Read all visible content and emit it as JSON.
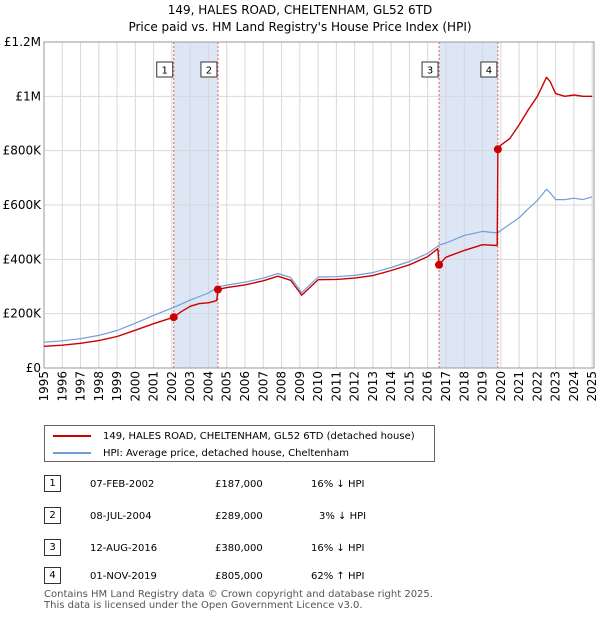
{
  "chart_data": {
    "type": "line",
    "title": "149, HALES ROAD, CHELTENHAM, GL52 6TD",
    "subtitle": "Price paid vs. HM Land Registry's House Price Index (HPI)",
    "xlabel": "",
    "ylabel": "",
    "xlim": [
      1995,
      2025.1
    ],
    "ylim": [
      0,
      1200000
    ],
    "x_ticks": [
      "1995",
      "1996",
      "1997",
      "1998",
      "1999",
      "2000",
      "2001",
      "2002",
      "2003",
      "2004",
      "2005",
      "2006",
      "2007",
      "2008",
      "2009",
      "2010",
      "2011",
      "2012",
      "2013",
      "2014",
      "2015",
      "2016",
      "2017",
      "2018",
      "2019",
      "2020",
      "2021",
      "2022",
      "2023",
      "2024",
      "2025"
    ],
    "y_ticks": [
      {
        "value": 0,
        "label": "£0"
      },
      {
        "value": 200000,
        "label": "£200K"
      },
      {
        "value": 400000,
        "label": "£400K"
      },
      {
        "value": 600000,
        "label": "£600K"
      },
      {
        "value": 800000,
        "label": "£800K"
      },
      {
        "value": 1000000,
        "label": "£1M"
      },
      {
        "value": 1200000,
        "label": "£1.2M"
      }
    ],
    "grid": true,
    "colors": {
      "property": "#cc0000",
      "hpi": "#6f9fd8",
      "band": "#dce6f5",
      "marker_line": "#e06060"
    },
    "series": [
      {
        "name": "149, HALES ROAD, CHELTENHAM, GL52 6TD (detached house)",
        "key": "property",
        "x": [
          1995.0,
          1996.0,
          1997.0,
          1998.0,
          1999.0,
          2000.0,
          2001.0,
          2002.1,
          2002.5,
          2003.0,
          2003.5,
          2004.0,
          2004.45,
          2004.52,
          2005.0,
          2006.0,
          2007.0,
          2007.8,
          2008.5,
          2009.0,
          2009.1,
          2010.0,
          2011.0,
          2012.0,
          2013.0,
          2014.0,
          2015.0,
          2016.0,
          2016.55,
          2016.62,
          2017.0,
          2018.0,
          2019.0,
          2019.8,
          2019.84,
          2020.0,
          2020.5,
          2021.0,
          2021.5,
          2022.0,
          2022.5,
          2022.7,
          2023.0,
          2023.5,
          2024.0,
          2024.5,
          2025.0
        ],
        "values": [
          80000,
          84000,
          91000,
          101000,
          116000,
          139000,
          163000,
          187000,
          207000,
          227000,
          237000,
          240000,
          248000,
          289000,
          296000,
          306000,
          321000,
          338000,
          323000,
          278000,
          268000,
          325000,
          326000,
          331000,
          340000,
          359000,
          380000,
          410000,
          439000,
          380000,
          408000,
          433000,
          454000,
          451000,
          805000,
          820000,
          845000,
          895000,
          950000,
          1000000,
          1070000,
          1055000,
          1010000,
          1000000,
          1005000,
          1000000,
          1000000
        ]
      },
      {
        "name": "HPI: Average price, detached house, Cheltenham",
        "key": "hpi",
        "x": [
          1995.0,
          1996.0,
          1997.0,
          1998.0,
          1999.0,
          2000.0,
          2001.0,
          2002.1,
          2003.0,
          2004.0,
          2004.52,
          2005.0,
          2006.0,
          2007.0,
          2007.8,
          2008.5,
          2009.0,
          2009.1,
          2010.0,
          2011.0,
          2012.0,
          2013.0,
          2014.0,
          2015.0,
          2016.0,
          2016.62,
          2017.0,
          2018.0,
          2019.0,
          2019.84,
          2020.0,
          2021.0,
          2021.5,
          2022.0,
          2022.5,
          2022.7,
          2023.0,
          2023.5,
          2024.0,
          2024.5,
          2025.0
        ],
        "values": [
          95000,
          100000,
          108000,
          120000,
          138000,
          165000,
          194000,
          223000,
          250000,
          276000,
          298000,
          305000,
          316000,
          331000,
          348000,
          333000,
          288000,
          277000,
          335000,
          336000,
          341000,
          351000,
          370000,
          392000,
          422000,
          452000,
          460000,
          488000,
          503000,
          497000,
          506000,
          553000,
          586000,
          617000,
          658000,
          645000,
          620000,
          620000,
          625000,
          620000,
          630000
        ]
      }
    ],
    "transactions": [
      {
        "n": "1",
        "x": 2002.1,
        "value": 187000
      },
      {
        "n": "2",
        "x": 2004.52,
        "value": 289000
      },
      {
        "n": "3",
        "x": 2016.62,
        "value": 380000
      },
      {
        "n": "4",
        "x": 2019.84,
        "value": 805000
      }
    ],
    "bands": [
      [
        2002.1,
        2004.52
      ],
      [
        2016.62,
        2019.84
      ]
    ]
  },
  "legend": {
    "property_label": "149, HALES ROAD, CHELTENHAM, GL52 6TD (detached house)",
    "hpi_label": "HPI: Average price, detached house, Cheltenham"
  },
  "table": [
    {
      "n": "1",
      "date": "07-FEB-2002",
      "price": "£187,000",
      "hpi": "16% ↓ HPI"
    },
    {
      "n": "2",
      "date": "08-JUL-2004",
      "price": "£289,000",
      "hpi": "3% ↓ HPI"
    },
    {
      "n": "3",
      "date": "12-AUG-2016",
      "price": "£380,000",
      "hpi": "16% ↓ HPI"
    },
    {
      "n": "4",
      "date": "01-NOV-2019",
      "price": "£805,000",
      "hpi": "62% ↑ HPI"
    }
  ],
  "footer": {
    "line1": "Contains HM Land Registry data © Crown copyright and database right 2025.",
    "line2": "This data is licensed under the Open Government Licence v3.0."
  }
}
